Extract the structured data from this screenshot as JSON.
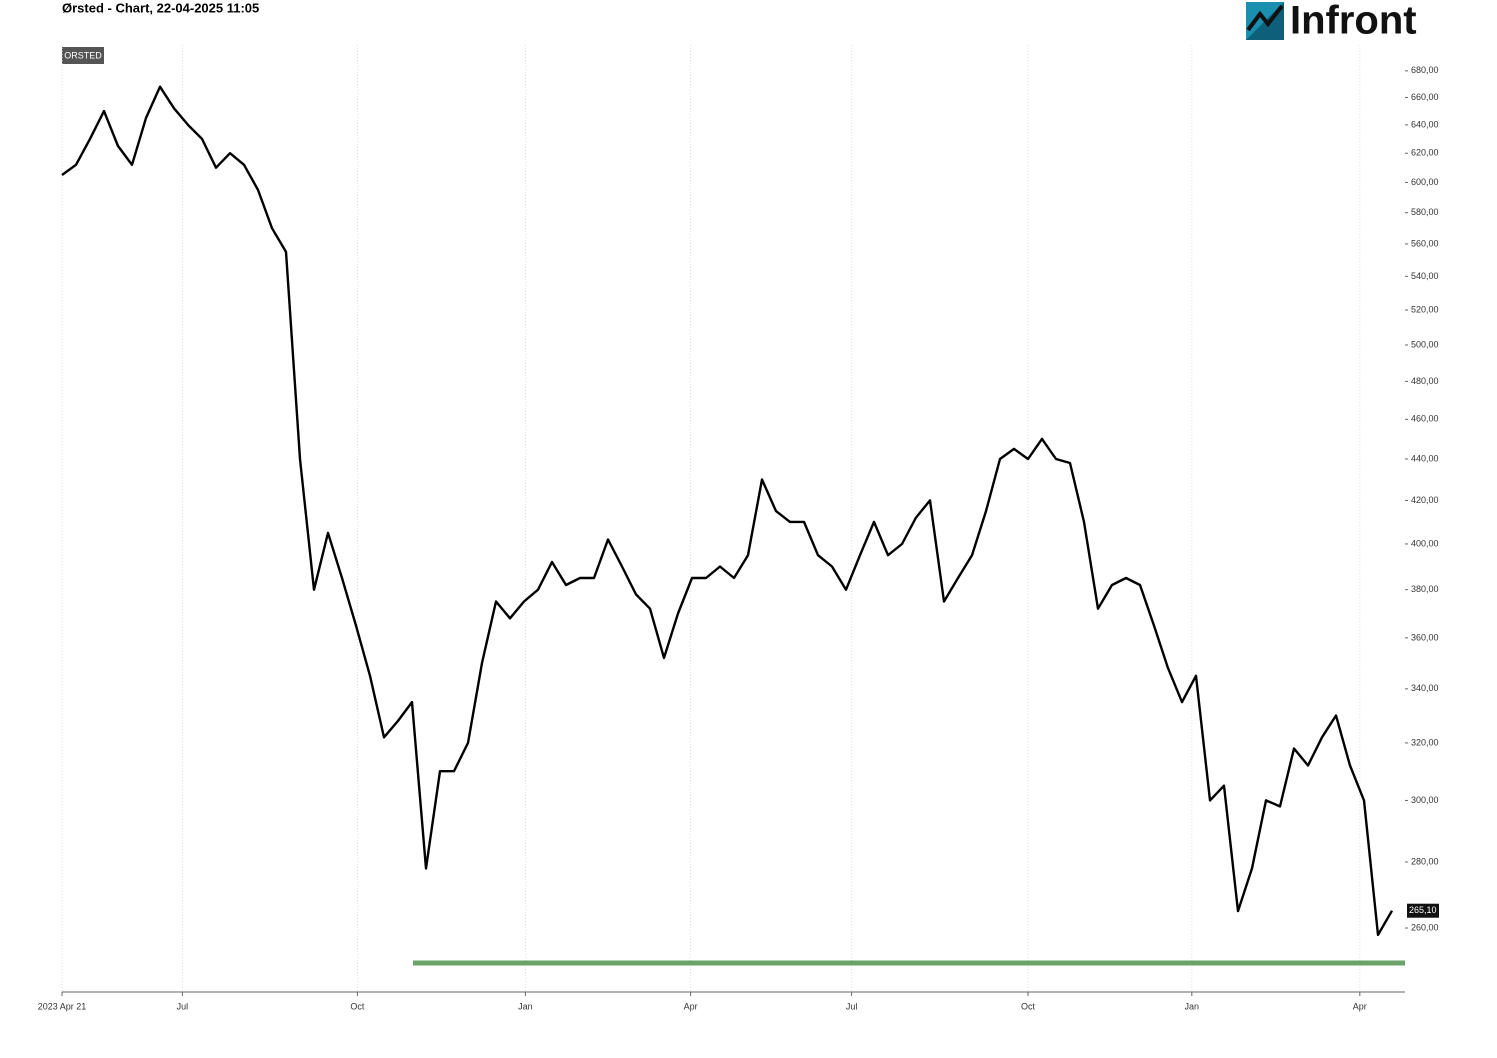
{
  "chart_data": {
    "type": "line",
    "title": "Ørsted - Chart, 22-04-2025 11:05",
    "badge": "ORSTED",
    "logo": "Infront",
    "log_scale": true,
    "grid": true,
    "series": [
      {
        "name": "ORSTED",
        "color": "#000000",
        "values": [
          605,
          612,
          630,
          650,
          625,
          612,
          645,
          668,
          652,
          640,
          630,
          610,
          620,
          612,
          595,
          570,
          555,
          440,
          380,
          405,
          385,
          365,
          345,
          322,
          328,
          335,
          278,
          310,
          310,
          320,
          350,
          375,
          368,
          375,
          380,
          392,
          382,
          385,
          385,
          402,
          390,
          378,
          372,
          352,
          370,
          385,
          385,
          390,
          385,
          395,
          430,
          415,
          410,
          410,
          395,
          390,
          380,
          395,
          410,
          395,
          400,
          412,
          420,
          375,
          385,
          395,
          415,
          440,
          445,
          440,
          450,
          440,
          438,
          410,
          372,
          382,
          385,
          382,
          365,
          348,
          335,
          345,
          300,
          305,
          265,
          278,
          300,
          298,
          318,
          312,
          322,
          330,
          312,
          300,
          258,
          265.1
        ]
      }
    ],
    "last_price": {
      "value": 265.1,
      "label": "265,10"
    },
    "support_line": {
      "value": 250,
      "color": "#5a9a5a"
    },
    "xlim": [
      0,
      95
    ],
    "xticks": [
      {
        "value": 0,
        "label": "2023 Apr 21"
      },
      {
        "value": 8.6,
        "label": "Jul"
      },
      {
        "value": 21.1,
        "label": "Oct"
      },
      {
        "value": 33.1,
        "label": "Jan"
      },
      {
        "value": 44.9,
        "label": "Apr"
      },
      {
        "value": 56.4,
        "label": "Jul"
      },
      {
        "value": 69,
        "label": "Oct"
      },
      {
        "value": 80.7,
        "label": "Jan"
      },
      {
        "value": 92.7,
        "label": "Apr"
      }
    ],
    "ylim": [
      242,
      700
    ],
    "yticks": [
      {
        "value": 260,
        "label": "260,00"
      },
      {
        "value": 280,
        "label": "280,00"
      },
      {
        "value": 300,
        "label": "300,00"
      },
      {
        "value": 320,
        "label": "320,00"
      },
      {
        "value": 340,
        "label": "340,00"
      },
      {
        "value": 360,
        "label": "360,00"
      },
      {
        "value": 380,
        "label": "380,00"
      },
      {
        "value": 400,
        "label": "400,00"
      },
      {
        "value": 420,
        "label": "420,00"
      },
      {
        "value": 440,
        "label": "440,00"
      },
      {
        "value": 460,
        "label": "460,00"
      },
      {
        "value": 480,
        "label": "480,00"
      },
      {
        "value": 500,
        "label": "500,00"
      },
      {
        "value": 520,
        "label": "520,00"
      },
      {
        "value": 540,
        "label": "540,00"
      },
      {
        "value": 560,
        "label": "560,00"
      },
      {
        "value": 580,
        "label": "580,00"
      },
      {
        "value": 600,
        "label": "600,00"
      },
      {
        "value": 620,
        "label": "620,00"
      },
      {
        "value": 640,
        "label": "640,00"
      },
      {
        "value": 660,
        "label": "660,00"
      },
      {
        "value": 680,
        "label": "680,00"
      }
    ]
  }
}
